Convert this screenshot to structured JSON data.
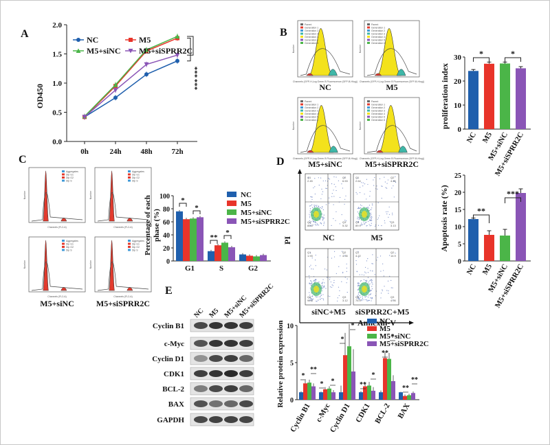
{
  "labels": [
    "A",
    "B",
    "C",
    "D",
    "E"
  ],
  "colors": {
    "blue": "#1f5fad",
    "red": "#e8342a",
    "green": "#4bb548",
    "purple": "#8a55b6",
    "pieYellow": "#f3e21c",
    "teal": "#3fb7a8"
  },
  "chart_data": [
    {
      "id": "A",
      "type": "line",
      "x": [
        "0h",
        "24h",
        "48h",
        "72h"
      ],
      "ylabel": "OD450",
      "ylim": [
        0,
        2.0
      ],
      "yticks": [
        "0.0",
        "0.5",
        "1.0",
        "1.5",
        "2.0"
      ],
      "series": [
        {
          "name": "NC",
          "values": [
            0.42,
            0.75,
            1.15,
            1.38
          ]
        },
        {
          "name": "M5",
          "values": [
            0.42,
            0.95,
            1.55,
            1.77
          ]
        },
        {
          "name": "M5+siNC",
          "values": [
            0.43,
            0.97,
            1.57,
            1.8
          ]
        },
        {
          "name": "M5+siSPRR2C",
          "values": [
            0.42,
            0.88,
            1.32,
            1.48
          ]
        }
      ],
      "annotations": [
        "***",
        "***"
      ]
    },
    {
      "id": "B",
      "type": "bar",
      "categories": [
        "NC",
        "M5",
        "M5+siNC",
        "M5+siSPRR2C"
      ],
      "values": [
        24.2,
        27.2,
        27.3,
        25.3
      ],
      "errors": [
        0.6,
        0.7,
        0.6,
        0.7
      ],
      "ylabel": "proliferation index",
      "ylim": [
        0,
        30
      ],
      "yticks": [
        "0",
        "10",
        "20",
        "30"
      ],
      "annotations": [
        "*",
        "*"
      ]
    },
    {
      "id": "C",
      "type": "bar",
      "categories": [
        "G1",
        "S",
        "G2"
      ],
      "series": [
        {
          "name": "NC",
          "values": [
            76,
            15,
            10
          ]
        },
        {
          "name": "M5",
          "values": [
            64,
            24,
            8
          ]
        },
        {
          "name": "M5+siNC",
          "values": [
            65,
            28,
            7
          ]
        },
        {
          "name": "M5+siSPRR2C",
          "values": [
            67,
            21,
            9
          ]
        }
      ],
      "ylabel": "Percentage of each phase (%)",
      "ylim": [
        0,
        100
      ],
      "yticks": [
        "0",
        "20",
        "40",
        "60",
        "80",
        "100"
      ],
      "annotations": [
        "*",
        "*",
        "**",
        "*"
      ]
    },
    {
      "id": "D",
      "type": "bar",
      "categories": [
        "NC",
        "M5",
        "M5+siNC",
        "M5+siSPRR2C"
      ],
      "values": [
        12.2,
        7.6,
        7.4,
        19.8
      ],
      "errors": [
        0.3,
        1.2,
        1.8,
        1.2
      ],
      "ylabel": "Apoptosis rate (%)",
      "ylim": [
        0,
        25
      ],
      "yticks": [
        "0",
        "5",
        "10",
        "15",
        "20",
        "25"
      ],
      "annotations": [
        "**",
        "***"
      ]
    },
    {
      "id": "E",
      "type": "bar",
      "categories": [
        "Cyclin B1",
        "c-Myc",
        "Cyclin D1",
        "CDK1",
        "BCL-2",
        "BAX"
      ],
      "series": [
        {
          "name": "NC",
          "values": [
            1.0,
            1.0,
            1.0,
            1.0,
            1.0,
            1.0
          ]
        },
        {
          "name": "M5",
          "values": [
            2.2,
            1.4,
            6.0,
            1.8,
            5.6,
            0.5
          ]
        },
        {
          "name": "M5+siNC",
          "values": [
            2.3,
            1.5,
            7.2,
            1.9,
            5.5,
            0.6
          ]
        },
        {
          "name": "M5+siSPRR2C",
          "values": [
            1.8,
            1.0,
            3.8,
            1.2,
            2.5,
            0.9
          ]
        }
      ],
      "ylabel": "Relative protein expression",
      "ylim": [
        0,
        10
      ],
      "yticks": [
        "0",
        "5",
        "10"
      ],
      "annotations": [
        "*",
        "**",
        "*",
        "*",
        "*",
        "*",
        "**",
        "*",
        "**",
        "*",
        "**",
        "**"
      ]
    }
  ],
  "panelB": {
    "histLabels": [
      "NC",
      "M5",
      "M5+siNC",
      "M5+siSPRR2C"
    ],
    "axisText": "Channels (GFP-H,Log Green B Fluorescence (GFP-B-Hlog))",
    "yAxisText": "Number",
    "legendText": [
      "Parent",
      "Generation 1",
      "Generation 2",
      "Generation 3",
      "Generation 4",
      "Generation 5",
      "Generation 6"
    ]
  },
  "panelC": {
    "histLabels": [
      "M5+siNC",
      "M5+siSPRR2C"
    ],
    "axisText": "Channels (FL2-A)",
    "yAxisText": "Number",
    "legendText": [
      "Aggregates",
      "Dip G1",
      "Dip G2",
      "Dip S"
    ]
  },
  "panelD": {
    "quadrantLabels": [
      "NC",
      "M5",
      "siNC+M5",
      "siSPRR2C+M5"
    ],
    "xlabel": "Annexin-V",
    "ylabel": "PI",
    "quads": [
      {
        "q1": "Q1\n2.45",
        "q2": "Q2\n6.53",
        "q3": "Q3\n5.32",
        "q4": "Q4\n85.5"
      },
      {
        "q1": "Q1\n2.64",
        "q2": "Q2\n4.26",
        "q3": "Q3\n3.13",
        "q4": "Q4\n89.9"
      },
      {
        "q1": "Q1\n1.93",
        "q2": "Q2\n4.35",
        "q3": "Q3\n3.12",
        "q4": "Q4\n90.6"
      },
      {
        "q1": "Q1\n4.22",
        "q2": "Q2\n14.9",
        "q3": "Q3\n4.95",
        "q4": "Q4\n75.9"
      }
    ]
  },
  "panelE": {
    "blotLanes": [
      "NC",
      "M5",
      "M5+siNC",
      "M5+siSPRR2C"
    ],
    "blotRows": [
      "Cyclin B1",
      "c-Myc",
      "Cyclin D1",
      "CDK1",
      "BCL-2",
      "BAX",
      "GAPDH"
    ]
  }
}
